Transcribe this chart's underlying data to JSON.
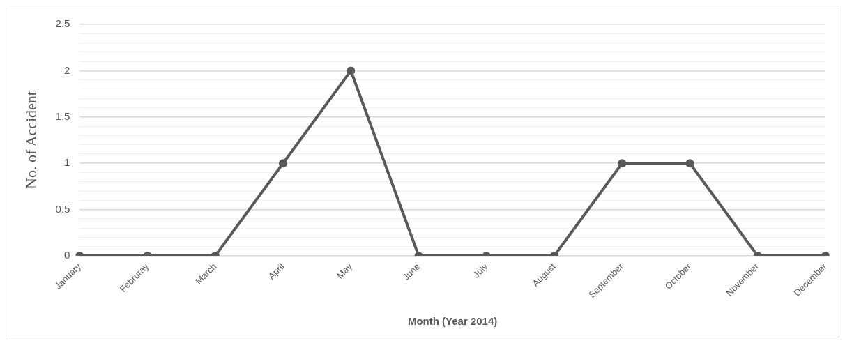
{
  "chart_data": {
    "type": "line",
    "xlabel": "Month (Year 2014)",
    "ylabel": "No. of Accident",
    "categories": [
      "January",
      "Februray",
      "March",
      "April",
      "May",
      "June",
      "July",
      "August",
      "September",
      "October",
      "November",
      "December"
    ],
    "series": [
      {
        "color": "#595959",
        "values": [
          0,
          0,
          0,
          1,
          2,
          0,
          0,
          0,
          1,
          1,
          0,
          0
        ]
      }
    ],
    "ylim": [
      0,
      2.5
    ],
    "yticks": [
      0,
      {
        "value": 0.1,
        "label": null
      },
      {
        "value": 0.2,
        "label": null
      },
      {
        "value": 0.3,
        "label": null
      },
      {
        "value": 0.4,
        "label": null
      },
      0.5,
      {
        "value": 0.6,
        "label": null
      },
      {
        "value": 0.7,
        "label": null
      },
      {
        "value": 0.8,
        "label": null
      },
      {
        "value": 0.9,
        "label": null
      },
      1,
      {
        "value": 1.1,
        "label": null
      },
      {
        "value": 1.2,
        "label": null
      },
      {
        "value": 1.3,
        "label": null
      },
      {
        "value": 1.4,
        "label": null
      },
      1.5,
      {
        "value": 1.6,
        "label": null
      },
      {
        "value": 1.7,
        "label": null
      },
      {
        "value": 1.8,
        "label": null
      },
      {
        "value": 1.9,
        "label": null
      },
      2,
      {
        "value": 2.1,
        "label": null
      },
      {
        "value": 2.2,
        "label": null
      },
      {
        "value": 2.3,
        "label": null
      },
      {
        "value": 2.4,
        "label": null
      },
      2.5
    ],
    "grid": "y",
    "legend": false,
    "marker": "circle",
    "line_style": "solid"
  }
}
